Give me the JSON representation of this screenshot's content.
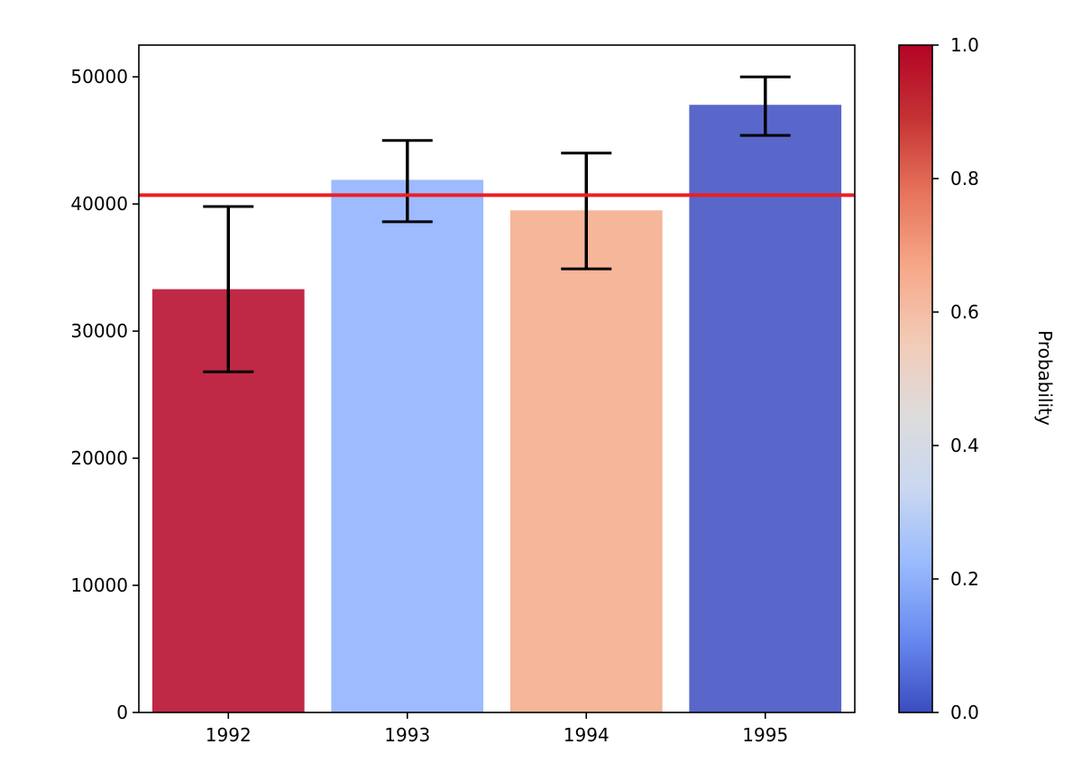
{
  "chart_data": {
    "type": "bar",
    "categories": [
      "1992",
      "1993",
      "1994",
      "1995"
    ],
    "values": [
      33300,
      41900,
      39500,
      47800
    ],
    "errors": [
      {
        "low": 26800,
        "high": 39800
      },
      {
        "low": 38600,
        "high": 45000
      },
      {
        "low": 34900,
        "high": 44000
      },
      {
        "low": 45400,
        "high": 50000
      }
    ],
    "probabilities": [
      0.95,
      0.25,
      0.7,
      0.05
    ],
    "bar_colors": [
      "#b40426",
      "#8caffe",
      "#f3a988",
      "#3b4cc0"
    ],
    "reference_line": {
      "value": 40700,
      "color": "#ee1d23"
    },
    "xlabel": "",
    "ylabel": "",
    "ylim": [
      0,
      52500
    ],
    "yticks": [
      0,
      10000,
      20000,
      30000,
      40000,
      50000
    ],
    "ytick_labels": [
      "0",
      "10000",
      "20000",
      "30000",
      "40000",
      "50000"
    ],
    "colorbar": {
      "label": "Probability",
      "range": [
        0,
        1
      ],
      "ticks": [
        0,
        0.2,
        0.4,
        0.6,
        0.8,
        1
      ],
      "tick_labels": [
        "0.0",
        "0.2",
        "0.4",
        "0.6",
        "0.8",
        "1.0"
      ],
      "colormap": "coolwarm",
      "stops": [
        "#3b4cc0",
        "#688aef",
        "#99bafe",
        "#c9d7f0",
        "#dddcdc",
        "#f2cbb7",
        "#f7a889",
        "#e7745b",
        "#c53334",
        "#b40426"
      ]
    },
    "grid": false,
    "legend": "none"
  }
}
